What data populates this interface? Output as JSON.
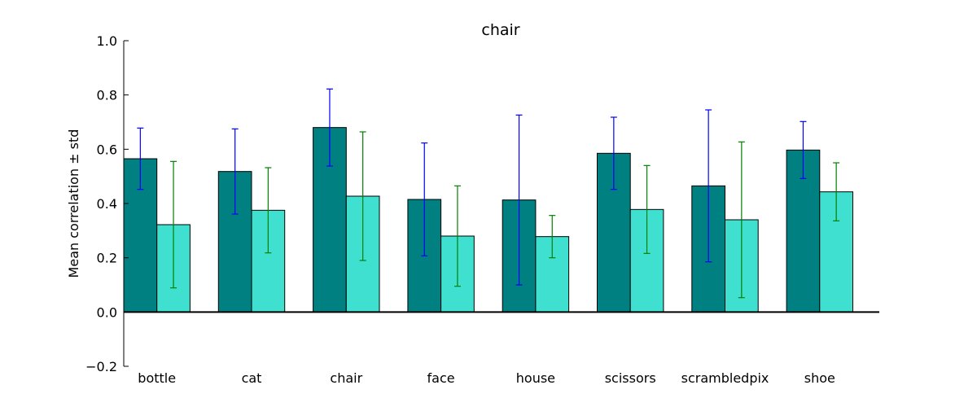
{
  "chart_data": {
    "type": "bar",
    "title": "chair",
    "xlabel": "",
    "ylabel": "Mean correlation ± std",
    "ylim": [
      -0.2,
      1.0
    ],
    "yticks": [
      -0.2,
      0.0,
      0.2,
      0.4,
      0.6,
      0.8,
      1.0
    ],
    "ytick_labels": [
      "−0.2",
      "0.0",
      "0.2",
      "0.4",
      "0.6",
      "0.8",
      "1.0"
    ],
    "categories": [
      "bottle",
      "cat",
      "chair",
      "face",
      "house",
      "scissors",
      "scrambledpix",
      "shoe"
    ],
    "grid": false,
    "legend": "none",
    "series": [
      {
        "color": "#008080",
        "error_color": "#0000ff",
        "values": [
          0.565,
          0.518,
          0.68,
          0.415,
          0.413,
          0.585,
          0.465,
          0.597
        ],
        "errors": [
          0.113,
          0.157,
          0.142,
          0.208,
          0.313,
          0.133,
          0.28,
          0.105
        ]
      },
      {
        "color": "#40e0d0",
        "error_color": "#008000",
        "values": [
          0.322,
          0.375,
          0.427,
          0.28,
          0.278,
          0.378,
          0.34,
          0.443
        ],
        "errors": [
          0.233,
          0.157,
          0.237,
          0.185,
          0.078,
          0.162,
          0.287,
          0.107
        ]
      }
    ]
  }
}
